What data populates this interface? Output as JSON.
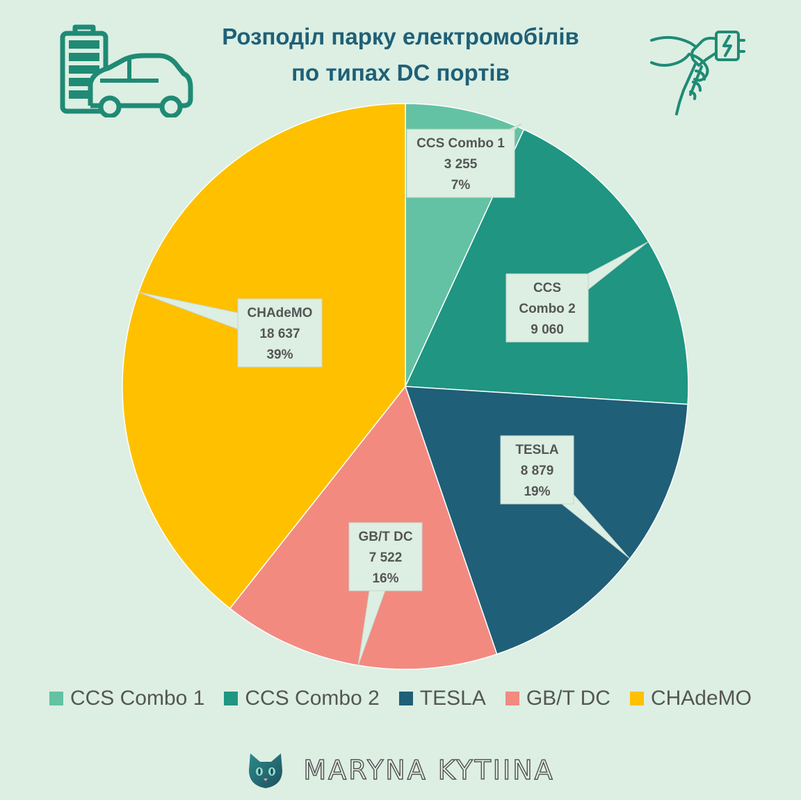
{
  "title": {
    "line1": "Розподіл парку електромобілів",
    "line2": "по типах DC портів"
  },
  "chart_data": {
    "type": "pie",
    "slices": [
      {
        "label": "CCS Combo 1",
        "value": 3255,
        "value_text": "3 255",
        "percent_text": "7%",
        "color": "#63c2a3",
        "callout_lines": [
          "CCS Combo 1",
          "3 255",
          "7%"
        ]
      },
      {
        "label": "CCS Combo 2",
        "value": 9060,
        "value_text": "9 060",
        "percent_text": "",
        "color": "#1f9582",
        "callout_lines": [
          "CCS",
          "Combo 2",
          "9 060"
        ]
      },
      {
        "label": "TESLA",
        "value": 8879,
        "value_text": "8 879",
        "percent_text": "19%",
        "color": "#1f5f78",
        "callout_lines": [
          "TESLA",
          "8 879",
          "19%"
        ]
      },
      {
        "label": "GB/T DC",
        "value": 7522,
        "value_text": "7 522",
        "percent_text": "16%",
        "color": "#f28a80",
        "callout_lines": [
          "GB/T DC",
          "7 522",
          "16%"
        ]
      },
      {
        "label": "CHAdeMO",
        "value": 18637,
        "value_text": "18 637",
        "percent_text": "39%",
        "color": "#ffc000",
        "callout_lines": [
          "CHAdeMO",
          "18 637",
          "39%"
        ]
      }
    ],
    "legend_placement": "bottom"
  },
  "legend": [
    {
      "label": "CCS Combo 1",
      "color": "#63c2a3"
    },
    {
      "label": "CCS Combo 2",
      "color": "#1f9582"
    },
    {
      "label": "TESLA",
      "color": "#1f5f78"
    },
    {
      "label": "GB/T DC",
      "color": "#f28a80"
    },
    {
      "label": "CHAdeMO",
      "color": "#ffc000"
    }
  ],
  "icons": {
    "top_left": "battery-car-icon",
    "top_right": "charging-plug-hand-icon",
    "brand": "cat-head-icon"
  },
  "brand": {
    "name": "MARYNA KYTIINA"
  },
  "colors": {
    "background": "#dcefe2",
    "title": "#1f6078",
    "icon_stroke": "#1f8a75",
    "callout_fill": "#dcefe2"
  }
}
